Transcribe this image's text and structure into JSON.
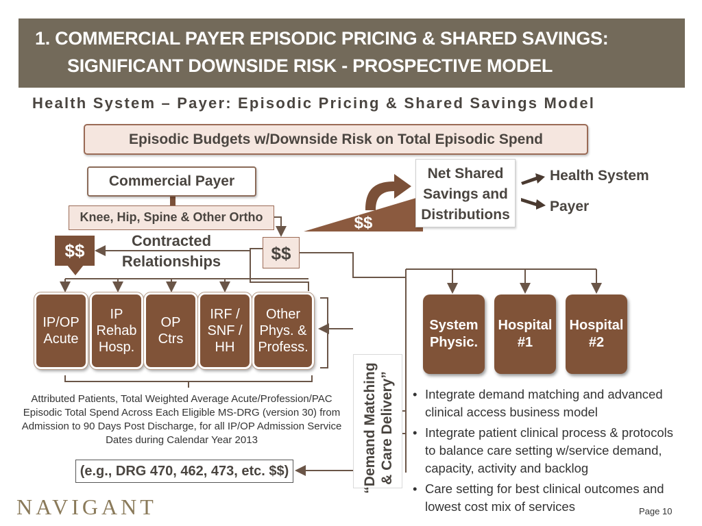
{
  "header": {
    "line1": "1.   COMMERCIAL PAYER EPISODIC PRICING & SHARED SAVINGS:",
    "line2": "SIGNIFICANT DOWNSIDE RISK  - PROSPECTIVE MODEL"
  },
  "subtitle": "Health System – Payer: Episodic Pricing & Shared Savings Model",
  "diagram": {
    "budget_label": "Episodic Budgets w/Downside Risk on Total Episodic Spend",
    "payer_label": "Commercial Payer",
    "ortho_label": "Knee, Hip, Spine & Other Ortho",
    "money_left": "$$",
    "money_center": "$$",
    "money_triangle": "$$",
    "contracted_line1": "Contracted",
    "contracted_line2": "Relationships",
    "net_shared": "Net Shared\nSavings and\nDistributions",
    "dest_health_system": "Health System",
    "dest_payer": "Payer",
    "care_units": [
      "IP/OP\nAcute",
      "IP\nRehab\nHosp.",
      "OP\nCtrs",
      "IRF /\nSNF /\nHH",
      "Other\nPhys. &\nProfess."
    ],
    "providers": [
      "System\nPhysic.",
      "Hospital\n#1",
      "Hospital\n#2"
    ],
    "vertical_label_line1": "“Demand Matching",
    "vertical_label_line2": "& Care Delivery”",
    "attributed_note": "Attributed Patients, Total Weighted Average Acute/Profession/PAC Episodic Total Spend Across Each Eligible MS-DRG (version 30) from Admission to 90 Days Post Discharge, for all IP/OP Admission Service Dates during Calendar Year 2013",
    "drg_example": "(e.g., DRG 470, 462, 473, etc. $$)",
    "bullets": [
      "Integrate demand matching and advanced clinical access business model",
      "Integrate patient clinical process & protocols to balance care setting w/service demand, capacity, activity and backlog",
      "Care setting for best clinical outcomes and lowest cost mix of services"
    ]
  },
  "footer": {
    "logo_text": "NAVIGANT",
    "page": "Page 10"
  },
  "colors": {
    "header_bg": "#736a5a",
    "brown": "#805338",
    "pink": "#f5e6df",
    "logo": "#8a7a5a"
  }
}
